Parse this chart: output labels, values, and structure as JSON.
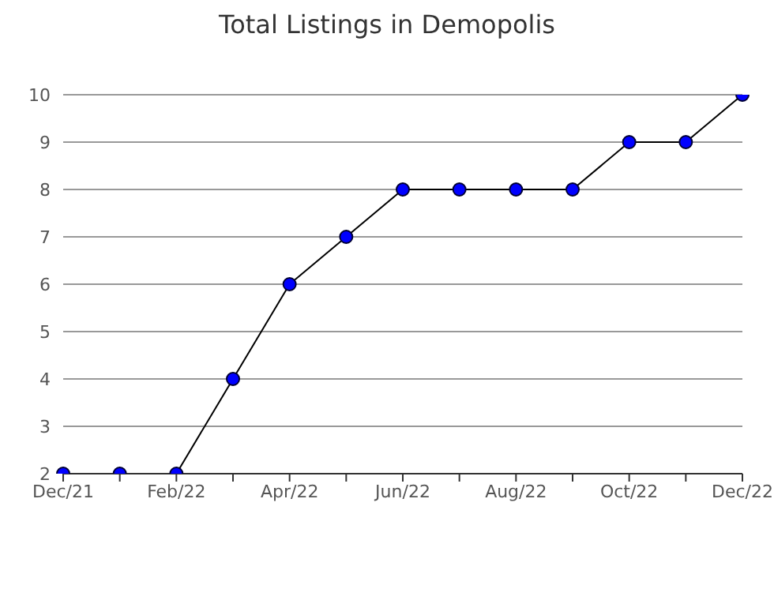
{
  "chart_data": {
    "type": "line",
    "title": "Total Listings in Demopolis",
    "categories": [
      "Dec/21",
      null,
      "Feb/22",
      null,
      "Apr/22",
      null,
      "Jun/22",
      null,
      "Aug/22",
      null,
      "Oct/22",
      null,
      "Dec/22"
    ],
    "series": [
      {
        "color": "#0000ff",
        "values": [
          2,
          2,
          2,
          4,
          6,
          7,
          8,
          8,
          8,
          8,
          9,
          9,
          10
        ]
      }
    ],
    "ylim": [
      2,
      10
    ],
    "yticks": [
      2,
      3,
      4,
      5,
      6,
      7,
      8,
      9,
      10
    ],
    "grid": "y",
    "marker": "circle",
    "legend": false
  }
}
